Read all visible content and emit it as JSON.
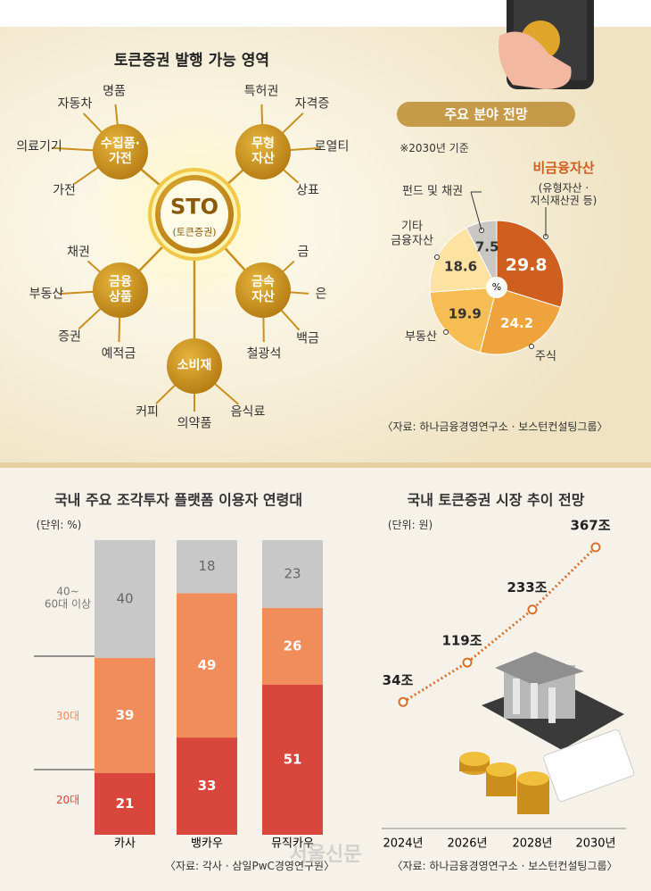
{
  "diagram": {
    "title": "토큰증권 발행 가능 영역",
    "center": {
      "label": "STO",
      "sub": "(토큰증권)"
    },
    "hubs": [
      {
        "label": "수집품·\n가전",
        "leaves": [
          "명품",
          "자동차",
          "의료기기",
          "가전"
        ]
      },
      {
        "label": "무형\n자산",
        "leaves": [
          "특허권",
          "자격증",
          "로열티",
          "상표"
        ]
      },
      {
        "label": "금융\n상품",
        "leaves": [
          "채권",
          "부동산",
          "증권",
          "예적금"
        ]
      },
      {
        "label": "금속\n자산",
        "leaves": [
          "금",
          "은",
          "백금",
          "철광석"
        ]
      },
      {
        "label": "소비재",
        "leaves": [
          "커피",
          "의약품",
          "음식료"
        ]
      }
    ]
  },
  "chart_data": [
    {
      "type": "pie",
      "title": "주요 분야 전망",
      "subtitle": "※2030년 기준",
      "center_label": "%",
      "categories": [
        "비금융자산",
        "주식",
        "부동산",
        "기타\n금융자산",
        "펀드 및 채권"
      ],
      "values": [
        29.8,
        24.2,
        19.9,
        18.6,
        7.5
      ],
      "colors": [
        "#cf5f1f",
        "#eea33d",
        "#f6bd55",
        "#fde2a2",
        "#c9c7c3"
      ],
      "annotation": "(유형자산 ·\n지식재산권 등)",
      "source": "〈자료: 하나금융경영연구소 · 보스턴컨설팅그룹〉"
    },
    {
      "type": "stacked_bar",
      "title": "국내 주요 조각투자 플랫폼 이용자 연령대",
      "subtitle": "(단위: %)",
      "categories": [
        "카사",
        "뱅카우",
        "뮤직카우"
      ],
      "series": [
        {
          "name": "20대",
          "color": "#d9463b",
          "values": [
            21,
            33,
            51
          ]
        },
        {
          "name": "30대",
          "color": "#f18c5b",
          "values": [
            39,
            49,
            26
          ]
        },
        {
          "name": "40~\n60대 이상",
          "color": "#c8c8c8",
          "values": [
            40,
            18,
            23
          ]
        }
      ],
      "source": "〈자료: 각사 · 삼일PwC경영연구원〉"
    },
    {
      "type": "line",
      "title": "국내 토큰증권 시장 추이 전망",
      "subtitle": "(단위: 원)",
      "categories": [
        "2024년",
        "2026년",
        "2028년",
        "2030년"
      ],
      "values": [
        34,
        119,
        233,
        367
      ],
      "value_labels": [
        "34조",
        "119조",
        "233조",
        "367조"
      ],
      "color": "#d9702a",
      "source": "〈자료: 하나금융경영연구소 · 보스턴컨설팅그룹〉"
    }
  ],
  "watermark": "서울신문"
}
